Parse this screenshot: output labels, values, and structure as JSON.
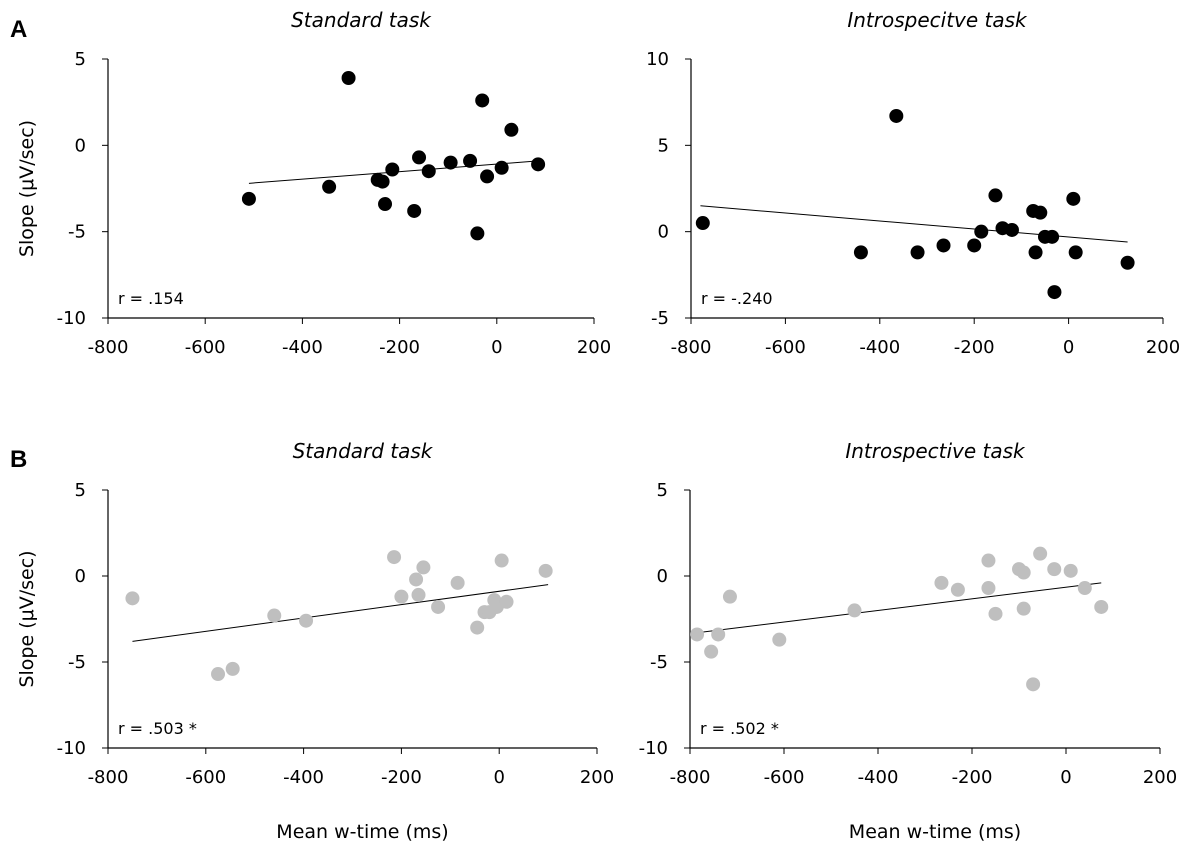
{
  "panels": {
    "A": "A",
    "B": "B"
  },
  "chart_data": [
    {
      "type": "scatter",
      "title": "Standard task",
      "xlabel": "",
      "ylabel": "Slope (μV/sec)",
      "xlim": [
        -800,
        200
      ],
      "ylim": [
        -10,
        5
      ],
      "xticks": [
        -800,
        -600,
        -400,
        -200,
        0,
        200
      ],
      "yticks": [
        -10,
        -5,
        0,
        5
      ],
      "annotation": "r = .154",
      "marker_color": "#000000",
      "trendline": {
        "x": [
          -510,
          85
        ],
        "y": [
          -2.2,
          -0.9
        ]
      },
      "points": [
        {
          "x": -510,
          "y": -3.1
        },
        {
          "x": -345,
          "y": -2.4
        },
        {
          "x": -305,
          "y": 3.9
        },
        {
          "x": -245,
          "y": -2.0
        },
        {
          "x": -235,
          "y": -2.1
        },
        {
          "x": -230,
          "y": -3.4
        },
        {
          "x": -215,
          "y": -1.4
        },
        {
          "x": -170,
          "y": -3.8
        },
        {
          "x": -160,
          "y": -0.7
        },
        {
          "x": -140,
          "y": -1.5
        },
        {
          "x": -95,
          "y": -1.0
        },
        {
          "x": -55,
          "y": -0.9
        },
        {
          "x": -40,
          "y": -5.1
        },
        {
          "x": -30,
          "y": 2.6
        },
        {
          "x": -20,
          "y": -1.8
        },
        {
          "x": 10,
          "y": -1.3
        },
        {
          "x": 30,
          "y": 0.9
        },
        {
          "x": 85,
          "y": -1.1
        }
      ]
    },
    {
      "type": "scatter",
      "title": "Introspecitve task",
      "xlabel": "",
      "ylabel": "",
      "xlim": [
        -800,
        200
      ],
      "ylim": [
        -5,
        10
      ],
      "xticks": [
        -800,
        -600,
        -400,
        -200,
        0,
        200
      ],
      "yticks": [
        -5,
        0,
        5,
        10
      ],
      "annotation": "r = -.240",
      "marker_color": "#000000",
      "trendline": {
        "x": [
          -780,
          125
        ],
        "y": [
          1.5,
          -0.6
        ]
      },
      "points": [
        {
          "x": -775,
          "y": 0.5
        },
        {
          "x": -440,
          "y": -1.2
        },
        {
          "x": -365,
          "y": 6.7
        },
        {
          "x": -320,
          "y": -1.2
        },
        {
          "x": -265,
          "y": -0.8
        },
        {
          "x": -200,
          "y": -0.8
        },
        {
          "x": -185,
          "y": 0.0
        },
        {
          "x": -155,
          "y": 2.1
        },
        {
          "x": -140,
          "y": 0.2
        },
        {
          "x": -120,
          "y": 0.1
        },
        {
          "x": -75,
          "y": 1.2
        },
        {
          "x": -70,
          "y": -1.2
        },
        {
          "x": -60,
          "y": 1.1
        },
        {
          "x": -50,
          "y": -0.3
        },
        {
          "x": -35,
          "y": -0.3
        },
        {
          "x": -30,
          "y": -3.5
        },
        {
          "x": 10,
          "y": 1.9
        },
        {
          "x": 15,
          "y": -1.2
        },
        {
          "x": 125,
          "y": -1.8
        }
      ]
    },
    {
      "type": "scatter",
      "title": "Standard task",
      "xlabel": "Mean w-time (ms)",
      "ylabel": "Slope (μV/sec)",
      "xlim": [
        -800,
        200
      ],
      "ylim": [
        -10,
        5
      ],
      "xticks": [
        -800,
        -600,
        -400,
        -200,
        0,
        200
      ],
      "yticks": [
        -10,
        -5,
        0,
        5
      ],
      "annotation": "r = .503 *",
      "marker_color": "#bfbfbf",
      "trendline": {
        "x": [
          -750,
          100
        ],
        "y": [
          -3.8,
          -0.5
        ]
      },
      "points": [
        {
          "x": -750,
          "y": -1.3
        },
        {
          "x": -575,
          "y": -5.7
        },
        {
          "x": -545,
          "y": -5.4
        },
        {
          "x": -460,
          "y": -2.3
        },
        {
          "x": -395,
          "y": -2.6
        },
        {
          "x": -215,
          "y": 1.1
        },
        {
          "x": -200,
          "y": -1.2
        },
        {
          "x": -170,
          "y": -0.2
        },
        {
          "x": -165,
          "y": -1.1
        },
        {
          "x": -155,
          "y": 0.5
        },
        {
          "x": -125,
          "y": -1.8
        },
        {
          "x": -85,
          "y": -0.4
        },
        {
          "x": -45,
          "y": -3.0
        },
        {
          "x": -30,
          "y": -2.1
        },
        {
          "x": -20,
          "y": -2.1
        },
        {
          "x": -10,
          "y": -1.4
        },
        {
          "x": -5,
          "y": -1.8
        },
        {
          "x": 5,
          "y": 0.9
        },
        {
          "x": 15,
          "y": -1.5
        },
        {
          "x": 95,
          "y": 0.3
        }
      ]
    },
    {
      "type": "scatter",
      "title": "Introspective task",
      "xlabel": "Mean w-time (ms)",
      "ylabel": "",
      "xlim": [
        -800,
        200
      ],
      "ylim": [
        -10,
        5
      ],
      "xticks": [
        -800,
        -600,
        -400,
        -200,
        0,
        200
      ],
      "yticks": [
        -10,
        -5,
        0,
        5
      ],
      "annotation": "r = .502 *",
      "marker_color": "#bfbfbf",
      "trendline": {
        "x": [
          -785,
          75
        ],
        "y": [
          -3.3,
          -0.4
        ]
      },
      "points": [
        {
          "x": -785,
          "y": -3.4
        },
        {
          "x": -755,
          "y": -4.4
        },
        {
          "x": -740,
          "y": -3.4
        },
        {
          "x": -715,
          "y": -1.2
        },
        {
          "x": -610,
          "y": -3.7
        },
        {
          "x": -450,
          "y": -2.0
        },
        {
          "x": -265,
          "y": -0.4
        },
        {
          "x": -230,
          "y": -0.8
        },
        {
          "x": -165,
          "y": 0.9
        },
        {
          "x": -165,
          "y": -0.7
        },
        {
          "x": -150,
          "y": -2.2
        },
        {
          "x": -100,
          "y": 0.4
        },
        {
          "x": -90,
          "y": 0.2
        },
        {
          "x": -90,
          "y": -1.9
        },
        {
          "x": -70,
          "y": -6.3
        },
        {
          "x": -55,
          "y": 1.3
        },
        {
          "x": -25,
          "y": 0.4
        },
        {
          "x": 10,
          "y": 0.3
        },
        {
          "x": 40,
          "y": -0.7
        },
        {
          "x": 75,
          "y": -1.8
        }
      ]
    }
  ]
}
